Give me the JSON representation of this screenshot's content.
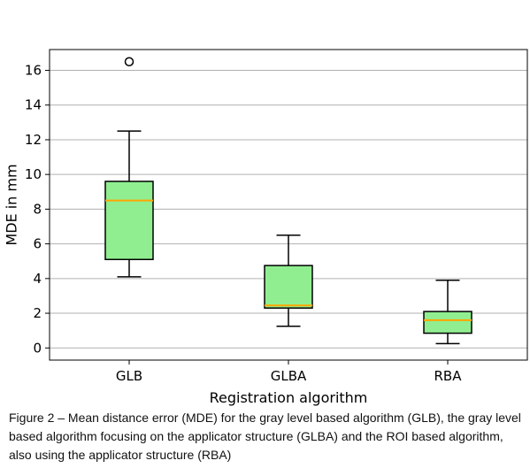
{
  "chart_data": {
    "type": "box",
    "title": "",
    "xlabel": "Registration algorithm",
    "ylabel": "MDE in mm",
    "ylim": [
      -0.7,
      17.2
    ],
    "yticks": [
      0,
      2,
      4,
      6,
      8,
      10,
      12,
      14,
      16
    ],
    "grid": "horizontal",
    "categories": [
      "GLB",
      "GLBA",
      "RBA"
    ],
    "boxes": [
      {
        "category": "GLB",
        "whisker_low": 4.1,
        "q1": 5.1,
        "median": 8.5,
        "q3": 9.6,
        "whisker_high": 12.5,
        "outliers": [
          16.5
        ]
      },
      {
        "category": "GLBA",
        "whisker_low": 1.25,
        "q1": 2.3,
        "median": 2.45,
        "q3": 4.75,
        "whisker_high": 6.5,
        "outliers": []
      },
      {
        "category": "RBA",
        "whisker_low": 0.25,
        "q1": 0.85,
        "median": 1.6,
        "q3": 2.1,
        "whisker_high": 3.9,
        "outliers": []
      }
    ],
    "colors": {
      "box_fill": "#90ee90",
      "median": "#ffa500",
      "grid": "#b0b0b0",
      "stroke": "#000000"
    }
  },
  "caption": "Figure 2 – Mean distance error (MDE) for the gray level based algorithm (GLB), the gray level based algorithm focusing on the applicator structure (GLBA) and the ROI based algorithm, also using the applicator structure (RBA)"
}
